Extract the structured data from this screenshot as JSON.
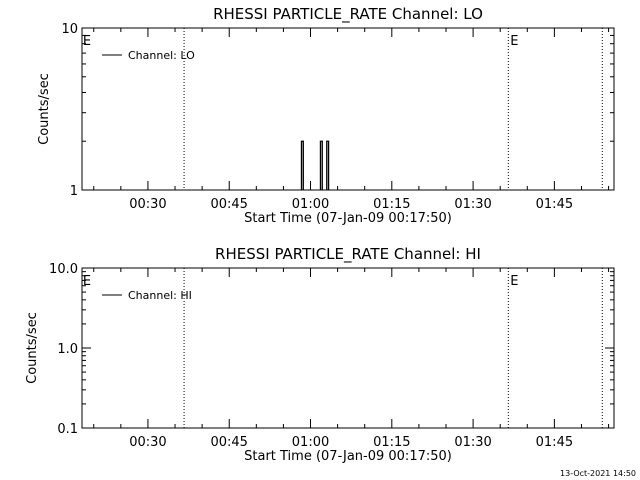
{
  "footer": {
    "timestamp": "13-Oct-2021 14:50"
  },
  "chart_data": [
    {
      "type": "line",
      "title": "RHESSI PARTICLE_RATE Channel: LO",
      "xlabel": "Start Time (07-Jan-09 00:17:50)",
      "ylabel": "Counts/sec",
      "yscale": "log",
      "ylim": [
        1,
        10
      ],
      "xlim": [
        "00:17:50",
        "01:56:00"
      ],
      "ytick_labels": [
        "1",
        "10"
      ],
      "xtick_labels": [
        "00:30",
        "00:45",
        "01:00",
        "01:15",
        "01:30",
        "01:45"
      ],
      "legend": {
        "entries": [
          "Channel: LO"
        ],
        "placement": "top-left"
      },
      "annotations": [
        "E",
        "E"
      ],
      "event_lines": [
        "00:36:40",
        "01:36:30",
        "01:53:50"
      ],
      "series": [
        {
          "name": "Channel: LO",
          "color": "#000000",
          "spikes": [
            {
              "start": "00:58:20",
              "end": "00:58:40",
              "value": 2
            },
            {
              "start": "01:01:50",
              "end": "01:02:10",
              "value": 2
            },
            {
              "start": "01:03:00",
              "end": "01:03:20",
              "value": 2
            }
          ],
          "baseline": 1
        }
      ]
    },
    {
      "type": "line",
      "title": "RHESSI PARTICLE_RATE Channel: HI",
      "xlabel": "Start Time (07-Jan-09 00:17:50)",
      "ylabel": "Counts/sec",
      "yscale": "log",
      "ylim": [
        0.1,
        10
      ],
      "xlim": [
        "00:17:50",
        "01:56:00"
      ],
      "ytick_labels": [
        "0.1",
        "1.0",
        "10.0"
      ],
      "xtick_labels": [
        "00:30",
        "00:45",
        "01:00",
        "01:15",
        "01:30",
        "01:45"
      ],
      "legend": {
        "entries": [
          "Channel: HI"
        ],
        "placement": "top-left"
      },
      "annotations": [
        "E",
        "E"
      ],
      "event_lines": [
        "00:36:40",
        "01:36:30",
        "01:53:50"
      ],
      "series": [
        {
          "name": "Channel: HI",
          "color": "#000000",
          "spikes": [],
          "baseline": 0.1
        }
      ]
    }
  ]
}
